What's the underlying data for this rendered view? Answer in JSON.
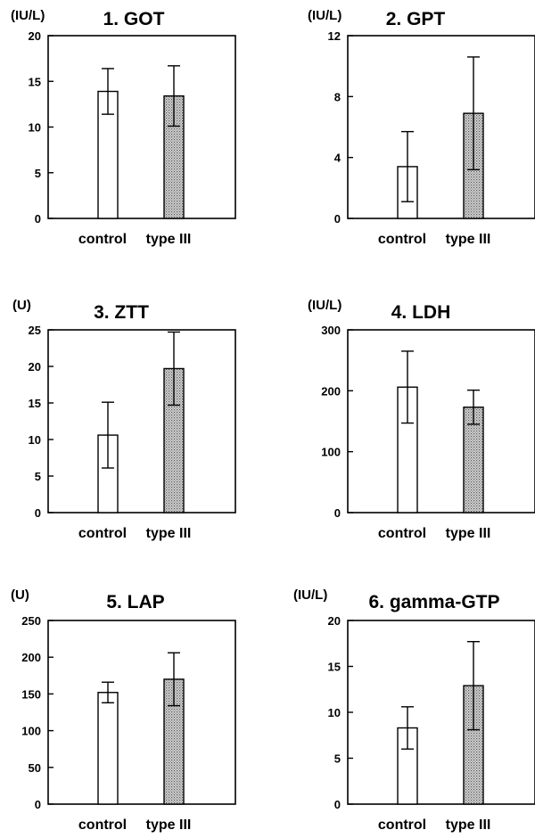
{
  "chart_data": [
    {
      "type": "bar",
      "title": "1. GOT",
      "unit": "(IU/L)",
      "categories": [
        "control",
        "type III"
      ],
      "values": [
        13.9,
        13.4
      ],
      "error": [
        2.5,
        3.3
      ],
      "ylim": [
        0,
        20
      ],
      "yticks": [
        0,
        5,
        10,
        15,
        20
      ],
      "ytick_labels": [
        "0",
        "5",
        "10",
        "15",
        "20"
      ]
    },
    {
      "type": "bar",
      "title": "2. GPT",
      "unit": "(IU/L)",
      "categories": [
        "control",
        "type III"
      ],
      "values": [
        3.4,
        6.9
      ],
      "error": [
        2.3,
        3.7
      ],
      "ylim": [
        0,
        12
      ],
      "yticks": [
        0,
        4,
        8,
        12
      ],
      "ytick_labels": [
        "0",
        "4",
        "8",
        "12"
      ]
    },
    {
      "type": "bar",
      "title": "3. ZTT",
      "unit": "(U)",
      "categories": [
        "control",
        "type III"
      ],
      "values": [
        10.6,
        19.7
      ],
      "error": [
        4.5,
        5.0
      ],
      "ylim": [
        0,
        25
      ],
      "yticks": [
        0,
        5,
        10,
        15,
        20,
        25
      ],
      "ytick_labels": [
        "0",
        "5",
        "10",
        "15",
        "20",
        "25"
      ]
    },
    {
      "type": "bar",
      "title": "4. LDH",
      "unit": "(IU/L)",
      "categories": [
        "control",
        "type III"
      ],
      "values": [
        206,
        173
      ],
      "error": [
        59,
        28
      ],
      "ylim": [
        0,
        300
      ],
      "yticks": [
        0,
        100,
        200,
        300
      ],
      "ytick_labels": [
        "0",
        "100",
        "200",
        "300"
      ]
    },
    {
      "type": "bar",
      "title": "5. LAP",
      "unit": "(U)",
      "categories": [
        "control",
        "type III"
      ],
      "values": [
        152,
        170
      ],
      "error": [
        14,
        36
      ],
      "ylim": [
        0,
        250
      ],
      "yticks": [
        0,
        50,
        100,
        150,
        200,
        250
      ],
      "ytick_labels": [
        "0",
        "50",
        "100",
        "150",
        "200",
        "250"
      ]
    },
    {
      "type": "bar",
      "title": "6. gamma-GTP",
      "unit": "(IU/L)",
      "categories": [
        "control",
        "type III"
      ],
      "values": [
        8.3,
        12.9
      ],
      "error": [
        2.3,
        4.8
      ],
      "ylim": [
        0,
        20
      ],
      "yticks": [
        0,
        5,
        10,
        15,
        20
      ],
      "ytick_labels": [
        "0",
        "5",
        "10",
        "15",
        "20"
      ]
    }
  ],
  "colors": {
    "control_fill": "#ffffff",
    "type3_fill": "#9a9a9a",
    "line": "#000000"
  }
}
